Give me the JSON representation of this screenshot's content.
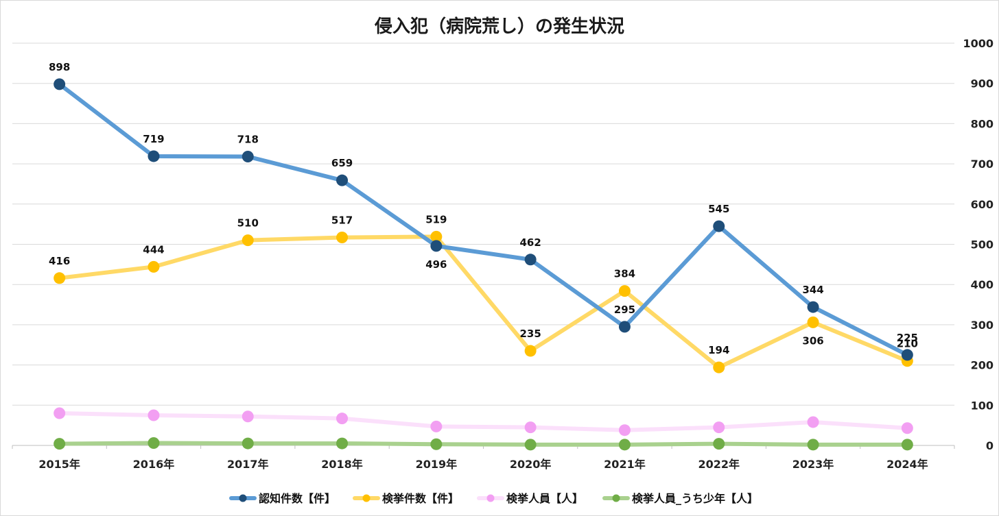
{
  "chart_data": {
    "type": "line",
    "title": "侵入犯（病院荒し）の発生状況",
    "categories": [
      "2015年",
      "2016年",
      "2017年",
      "2018年",
      "2019年",
      "2020年",
      "2021年",
      "2022年",
      "2023年",
      "2024年"
    ],
    "ylim": [
      0,
      1000
    ],
    "yticks": [
      0,
      100,
      200,
      300,
      400,
      500,
      600,
      700,
      800,
      900,
      1000
    ],
    "y_axis_side": "right",
    "grid": true,
    "legend_position": "bottom",
    "series": [
      {
        "name": "認知件数【件】",
        "values": [
          898,
          719,
          718,
          659,
          496,
          462,
          295,
          545,
          344,
          225
        ],
        "line_color": "#5b9bd5",
        "marker_color": "#1f4e79",
        "show_labels": true,
        "label_pos": [
          "above",
          "above",
          "above",
          "above",
          "below",
          "above",
          "above",
          "above",
          "above",
          "above"
        ]
      },
      {
        "name": "検挙件数【件】",
        "values": [
          416,
          444,
          510,
          517,
          519,
          235,
          384,
          194,
          306,
          210
        ],
        "line_color": "#ffd966",
        "marker_color": "#ffc000",
        "show_labels": true,
        "label_pos": [
          "above",
          "above",
          "above",
          "above",
          "above",
          "above",
          "above",
          "above",
          "below",
          "above"
        ]
      },
      {
        "name": "検挙人員【人】",
        "values": [
          80,
          75,
          72,
          67,
          47,
          45,
          38,
          45,
          58,
          43
        ],
        "line_color": "#fbe0fb",
        "marker_color": "#f29ff2",
        "show_labels": false
      },
      {
        "name": "検挙人員_うち少年【人】",
        "values": [
          4,
          6,
          5,
          5,
          3,
          2,
          2,
          4,
          2,
          2
        ],
        "line_color": "#a9d18e",
        "marker_color": "#70ad47",
        "show_labels": false
      }
    ]
  }
}
